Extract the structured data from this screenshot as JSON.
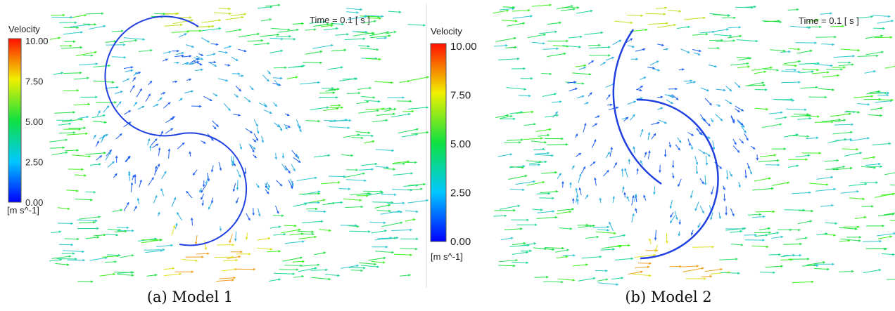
{
  "panels": [
    {
      "colorbar": {
        "title": "Velocity",
        "ticks": [
          "10.00",
          "7.50",
          "5.00",
          "2.50",
          "0.00"
        ],
        "unit": "[m s^-1]"
      },
      "time": "Time = 0.1 [ s ]",
      "caption": "(a)  Model 1"
    },
    {
      "colorbar": {
        "title": "Velocity",
        "ticks": [
          "10.00",
          "7.50",
          "5.00",
          "2.50",
          "0.00"
        ],
        "unit": "[m s^-1]"
      },
      "time": "Time = 0.1 [ s ]",
      "caption": "(b)  Model 2"
    }
  ]
}
